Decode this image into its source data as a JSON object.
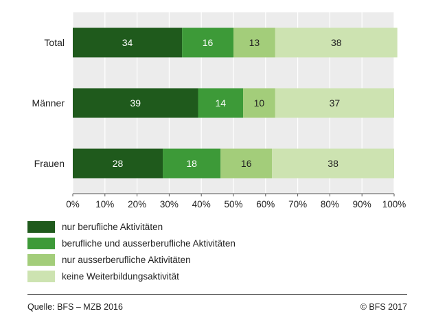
{
  "chart_data": {
    "type": "bar",
    "orientation": "horizontal",
    "stacked": true,
    "categories": [
      "Total",
      "Männer",
      "Frauen"
    ],
    "series": [
      {
        "name": "nur berufliche Aktivitäten",
        "values": [
          34,
          39,
          28
        ],
        "color": "#1f5a1c"
      },
      {
        "name": "berufliche und ausserberufliche Aktivitäten",
        "values": [
          16,
          14,
          18
        ],
        "color": "#3d9a38"
      },
      {
        "name": "nur ausserberufliche Aktivitäten",
        "values": [
          13,
          10,
          16
        ],
        "color": "#a3cd7a"
      },
      {
        "name": "keine Weiterbildungsaktivität",
        "values": [
          38,
          37,
          38
        ],
        "color": "#cde3b1"
      }
    ],
    "xlim": [
      0,
      100
    ],
    "xticks": [
      "0%",
      "10%",
      "20%",
      "30%",
      "40%",
      "50%",
      "60%",
      "70%",
      "80%",
      "90%",
      "100%"
    ],
    "grid": "vertical",
    "legend_position": "bottom"
  },
  "footer": {
    "source": "Quelle: BFS – MZB 2016",
    "copyright": "© BFS 2017"
  }
}
